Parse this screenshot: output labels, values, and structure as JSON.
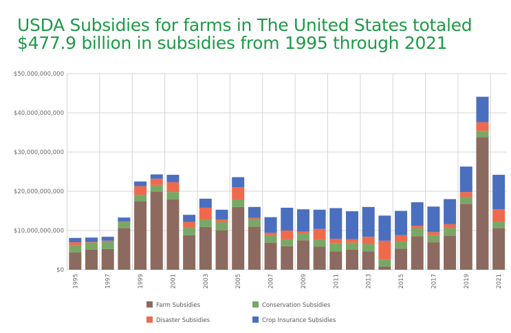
{
  "chart_data": {
    "type": "bar",
    "stacked": true,
    "title": "USDA Subsidies for farms in The United States totaled $477.9 billion in subsidies from 1995 through 2021",
    "xlabel": "",
    "ylabel": "",
    "ylim": [
      0,
      50000000000
    ],
    "yticks": [
      "$0",
      "$10,000,000,000",
      "$20,000,000,000",
      "$30,000,000,000",
      "$40,000,000,000",
      "$50,000,000,000"
    ],
    "categories": [
      "1995",
      "1996",
      "1997",
      "1998",
      "1999",
      "2000",
      "2001",
      "2002",
      "2003",
      "2004",
      "2005",
      "2006",
      "2007",
      "2008",
      "2009",
      "2010",
      "2011",
      "2012",
      "2013",
      "2014",
      "2015",
      "2016",
      "2017",
      "2018",
      "2019",
      "2020",
      "2021"
    ],
    "xtick_labels": [
      "1995",
      "1997",
      "1999",
      "2001",
      "2003",
      "2005",
      "2007",
      "2009",
      "2011",
      "2013",
      "2015",
      "2017",
      "2019",
      "2021"
    ],
    "units": "billions USD",
    "series": [
      {
        "name": "Farm Subsidies",
        "color": "#8c6a5f",
        "values": [
          4.4,
          5.1,
          5.3,
          10.6,
          17.5,
          19.9,
          17.9,
          8.8,
          10.9,
          10.0,
          16.0,
          11.0,
          6.9,
          6.0,
          7.5,
          5.9,
          4.7,
          5.1,
          4.7,
          0.8,
          5.4,
          8.5,
          7.0,
          8.6,
          16.8,
          33.8,
          10.6
        ]
      },
      {
        "name": "Conservation Subsidies",
        "color": "#79a866",
        "values": [
          1.9,
          1.8,
          1.8,
          1.6,
          1.6,
          1.7,
          1.9,
          2.0,
          1.9,
          2.1,
          1.9,
          1.9,
          1.9,
          1.8,
          1.8,
          1.8,
          2.0,
          1.8,
          1.8,
          1.8,
          1.8,
          2.1,
          1.8,
          2.0,
          1.8,
          1.6,
          1.6
        ]
      },
      {
        "name": "Disaster Subsidies",
        "color": "#ef6a4c",
        "values": [
          0.7,
          0.2,
          0.3,
          0.1,
          2.2,
          1.6,
          2.5,
          1.4,
          3.0,
          0.7,
          3.1,
          0.3,
          0.6,
          2.2,
          0.4,
          2.7,
          1.2,
          0.9,
          1.9,
          4.8,
          1.6,
          0.6,
          0.8,
          1.0,
          1.2,
          2.2,
          3.2
        ]
      },
      {
        "name": "Crop Insurance Subsidies",
        "color": "#4a6fbf",
        "values": [
          1.1,
          1.1,
          1.0,
          1.0,
          1.2,
          1.1,
          1.9,
          1.8,
          2.3,
          2.5,
          2.6,
          2.8,
          4.0,
          5.8,
          5.7,
          4.9,
          7.8,
          7.1,
          7.6,
          6.4,
          6.2,
          6.0,
          6.5,
          6.4,
          6.5,
          6.5,
          8.8
        ]
      }
    ],
    "legend_position": "bottom",
    "grid": true
  }
}
